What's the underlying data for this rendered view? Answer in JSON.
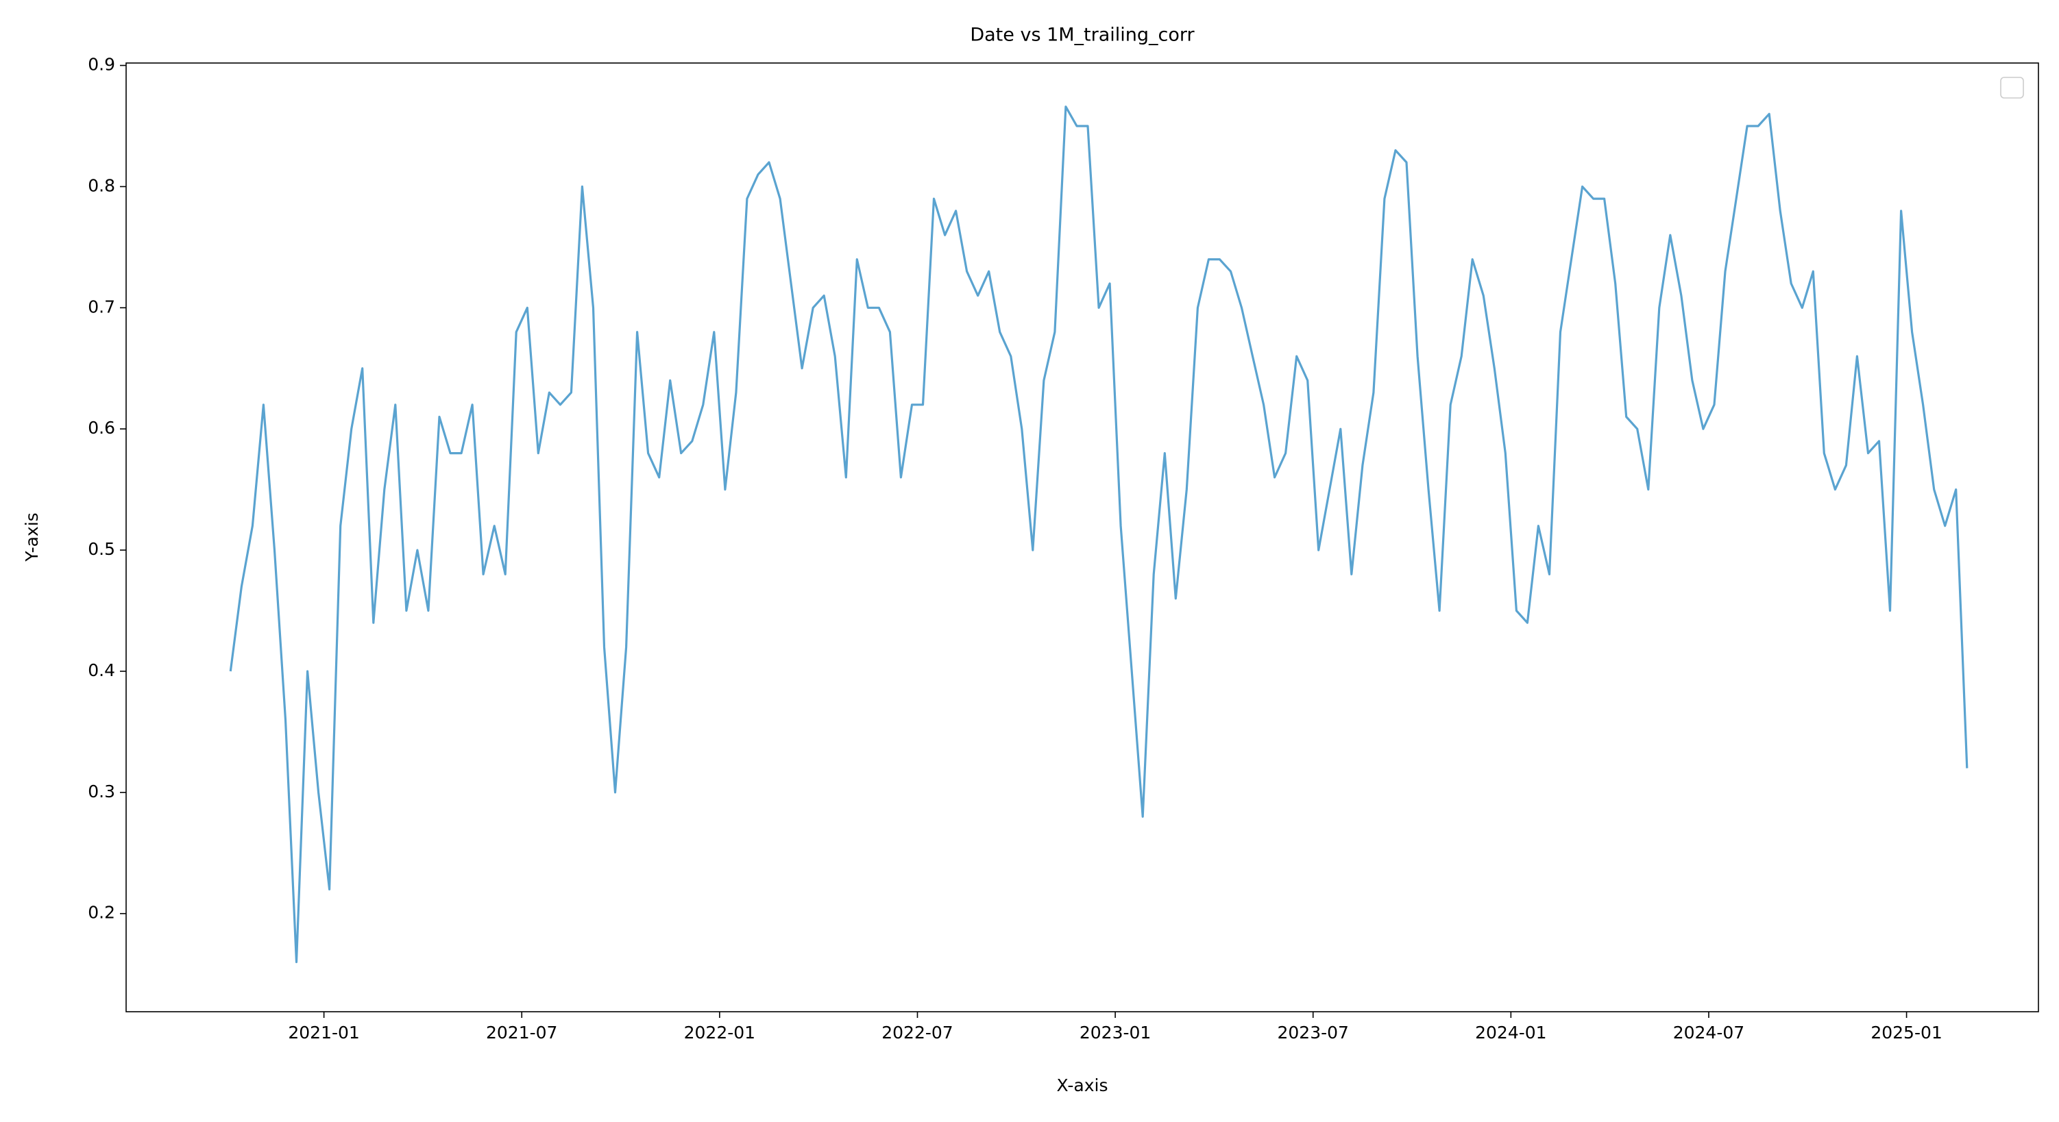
{
  "chart_data": {
    "type": "line",
    "title": "Date vs 1M_trailing_corr",
    "x_label": "X-axis",
    "y_label": "Y-axis",
    "color": "#5aa3d0",
    "x": [
      "2020-10",
      "2020-10",
      "2020-10",
      "2020-11",
      "2020-11",
      "2020-11",
      "2020-12",
      "2020-12",
      "2020-12",
      "2021-01",
      "2021-01",
      "2021-01",
      "2021-02",
      "2021-02",
      "2021-02",
      "2021-03",
      "2021-03",
      "2021-03",
      "2021-04",
      "2021-04",
      "2021-04",
      "2021-05",
      "2021-05",
      "2021-05",
      "2021-06",
      "2021-06",
      "2021-06",
      "2021-07",
      "2021-07",
      "2021-07",
      "2021-08",
      "2021-08",
      "2021-08",
      "2021-09",
      "2021-09",
      "2021-09",
      "2021-10",
      "2021-10",
      "2021-10",
      "2021-11",
      "2021-11",
      "2021-11",
      "2021-12",
      "2021-12",
      "2021-12",
      "2022-01",
      "2022-01",
      "2022-01",
      "2022-02",
      "2022-02",
      "2022-02",
      "2022-03",
      "2022-03",
      "2022-03",
      "2022-04",
      "2022-04",
      "2022-04",
      "2022-05",
      "2022-05",
      "2022-05",
      "2022-06",
      "2022-06",
      "2022-06",
      "2022-07",
      "2022-07",
      "2022-07",
      "2022-08",
      "2022-08",
      "2022-08",
      "2022-09",
      "2022-09",
      "2022-09",
      "2022-10",
      "2022-10",
      "2022-10",
      "2022-11",
      "2022-11",
      "2022-11",
      "2022-12",
      "2022-12",
      "2022-12",
      "2023-01",
      "2023-01",
      "2023-01",
      "2023-02",
      "2023-02",
      "2023-02",
      "2023-03",
      "2023-03",
      "2023-03",
      "2023-04",
      "2023-04",
      "2023-04",
      "2023-05",
      "2023-05",
      "2023-05",
      "2023-06",
      "2023-06",
      "2023-06",
      "2023-07",
      "2023-07",
      "2023-07",
      "2023-08",
      "2023-08",
      "2023-08",
      "2023-09",
      "2023-09",
      "2023-09",
      "2023-10",
      "2023-10",
      "2023-10",
      "2023-11",
      "2023-11",
      "2023-11",
      "2023-12",
      "2023-12",
      "2023-12",
      "2024-01",
      "2024-01",
      "2024-01",
      "2024-02",
      "2024-02",
      "2024-02",
      "2024-03",
      "2024-03",
      "2024-03",
      "2024-04",
      "2024-04",
      "2024-04",
      "2024-05",
      "2024-05",
      "2024-05",
      "2024-06",
      "2024-06",
      "2024-06",
      "2024-07",
      "2024-07",
      "2024-07",
      "2024-08",
      "2024-08",
      "2024-08",
      "2024-09",
      "2024-09",
      "2024-09",
      "2024-10",
      "2024-10",
      "2024-10",
      "2024-11",
      "2024-11",
      "2024-11",
      "2024-12",
      "2024-12",
      "2024-12",
      "2025-01",
      "2025-01",
      "2025-01",
      "2025-02",
      "2025-02",
      "2025-02"
    ],
    "values": [
      0.4,
      0.47,
      0.52,
      0.62,
      0.5,
      0.36,
      0.16,
      0.4,
      0.3,
      0.22,
      0.52,
      0.6,
      0.65,
      0.44,
      0.55,
      0.62,
      0.45,
      0.5,
      0.45,
      0.61,
      0.58,
      0.58,
      0.62,
      0.48,
      0.52,
      0.48,
      0.68,
      0.7,
      0.58,
      0.63,
      0.62,
      0.63,
      0.8,
      0.7,
      0.42,
      0.3,
      0.42,
      0.68,
      0.58,
      0.56,
      0.64,
      0.58,
      0.59,
      0.62,
      0.68,
      0.55,
      0.63,
      0.79,
      0.81,
      0.82,
      0.79,
      0.72,
      0.65,
      0.7,
      0.71,
      0.66,
      0.56,
      0.74,
      0.7,
      0.7,
      0.68,
      0.56,
      0.62,
      0.62,
      0.79,
      0.76,
      0.78,
      0.73,
      0.71,
      0.73,
      0.68,
      0.66,
      0.6,
      0.5,
      0.64,
      0.68,
      0.866,
      0.85,
      0.85,
      0.7,
      0.72,
      0.52,
      0.4,
      0.28,
      0.48,
      0.58,
      0.46,
      0.55,
      0.7,
      0.74,
      0.74,
      0.73,
      0.7,
      0.66,
      0.62,
      0.56,
      0.58,
      0.66,
      0.64,
      0.5,
      0.55,
      0.6,
      0.48,
      0.57,
      0.63,
      0.79,
      0.83,
      0.82,
      0.66,
      0.55,
      0.45,
      0.62,
      0.66,
      0.74,
      0.71,
      0.65,
      0.58,
      0.45,
      0.44,
      0.52,
      0.48,
      0.68,
      0.74,
      0.8,
      0.79,
      0.79,
      0.72,
      0.61,
      0.6,
      0.55,
      0.7,
      0.76,
      0.71,
      0.64,
      0.6,
      0.62,
      0.73,
      0.79,
      0.85,
      0.85,
      0.86,
      0.78,
      0.72,
      0.7,
      0.73,
      0.58,
      0.55,
      0.57,
      0.66,
      0.58,
      0.59,
      0.45,
      0.78,
      0.68,
      0.62,
      0.55,
      0.52,
      0.55,
      0.32
    ],
    "xlim": [
      "2020-07",
      "2025-05"
    ],
    "xticks": [
      "2021-01",
      "2021-07",
      "2022-01",
      "2022-07",
      "2023-01",
      "2023-07",
      "2024-01",
      "2024-07",
      "2025-01"
    ],
    "ylim": [
      0.119,
      0.902
    ],
    "yticks": [
      0.2,
      0.3,
      0.4,
      0.5,
      0.6,
      0.7,
      0.8,
      0.9
    ]
  }
}
